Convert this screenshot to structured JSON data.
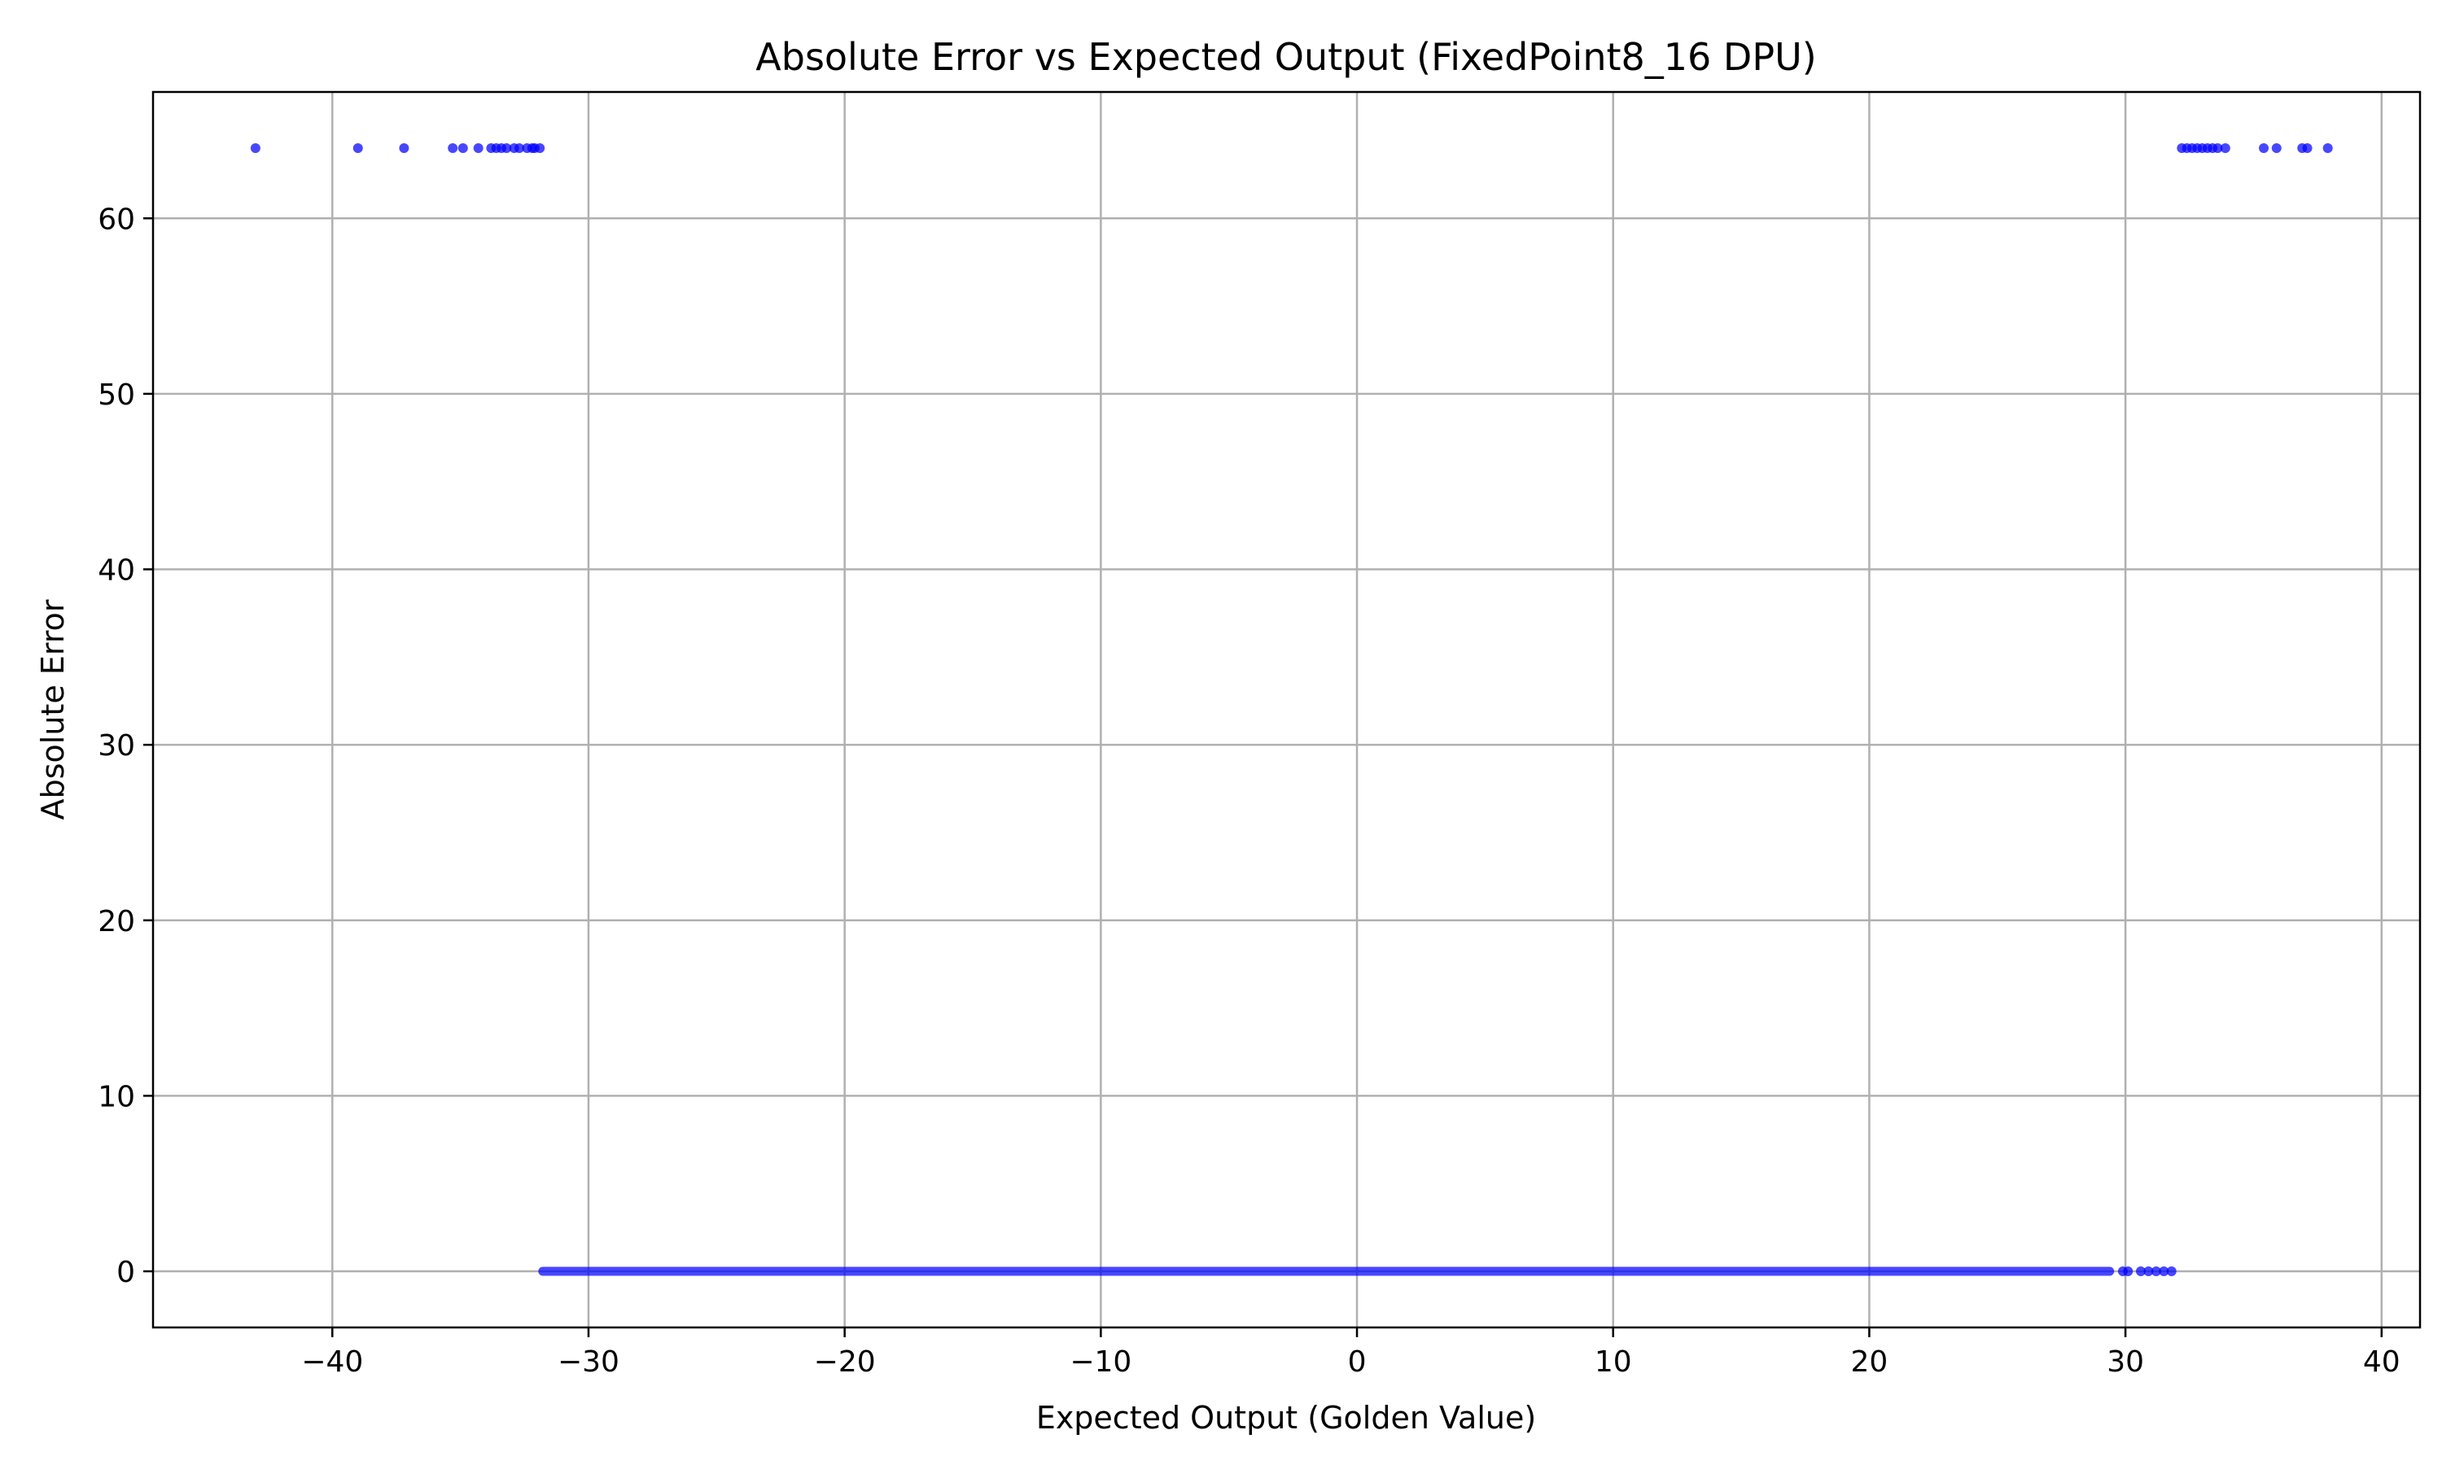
{
  "chart_data": {
    "type": "scatter",
    "title": "Absolute Error vs Expected Output (FixedPoint8_16 DPU)",
    "xlabel": "Expected Output (Golden Value)",
    "ylabel": "Absolute Error",
    "xlim": [
      -47,
      41.5
    ],
    "ylim": [
      -3.2,
      67.2
    ],
    "xticks": [
      -40,
      -30,
      -20,
      -10,
      0,
      10,
      20,
      30,
      40
    ],
    "xtick_labels": [
      "−40",
      "−30",
      "−20",
      "−10",
      "0",
      "10",
      "20",
      "30",
      "40"
    ],
    "yticks": [
      0,
      10,
      20,
      30,
      40,
      50,
      60
    ],
    "ytick_labels": [
      "0",
      "10",
      "20",
      "30",
      "40",
      "50",
      "60"
    ],
    "grid": true,
    "marker_color": "#0000ff",
    "series": [
      {
        "points": [
          {
            "x": -43.0,
            "y": 64
          },
          {
            "x": -39.0,
            "y": 64
          },
          {
            "x": -37.2,
            "y": 64
          },
          {
            "x": -35.3,
            "y": 64
          },
          {
            "x": -34.9,
            "y": 64
          },
          {
            "x": -34.3,
            "y": 64
          },
          {
            "x": -33.8,
            "y": 64
          },
          {
            "x": -33.6,
            "y": 64
          },
          {
            "x": -33.4,
            "y": 64
          },
          {
            "x": -33.2,
            "y": 64
          },
          {
            "x": -32.9,
            "y": 64
          },
          {
            "x": -32.7,
            "y": 64
          },
          {
            "x": -32.4,
            "y": 64
          },
          {
            "x": -32.2,
            "y": 64
          },
          {
            "x": -32.1,
            "y": 64
          },
          {
            "x": -31.9,
            "y": 64
          },
          {
            "x": 32.2,
            "y": 64
          },
          {
            "x": 32.4,
            "y": 64
          },
          {
            "x": 32.6,
            "y": 64
          },
          {
            "x": 32.8,
            "y": 64
          },
          {
            "x": 33.0,
            "y": 64
          },
          {
            "x": 33.2,
            "y": 64
          },
          {
            "x": 33.4,
            "y": 64
          },
          {
            "x": 33.6,
            "y": 64
          },
          {
            "x": 33.9,
            "y": 64
          },
          {
            "x": 35.4,
            "y": 64
          },
          {
            "x": 35.9,
            "y": 64
          },
          {
            "x": 36.9,
            "y": 64
          },
          {
            "x": 37.1,
            "y": 64
          },
          {
            "x": 37.9,
            "y": 64
          },
          {
            "x": 29.9,
            "y": 0
          },
          {
            "x": 30.1,
            "y": 0
          },
          {
            "x": 30.6,
            "y": 0
          },
          {
            "x": 30.9,
            "y": 0
          },
          {
            "x": 31.2,
            "y": 0
          },
          {
            "x": 31.5,
            "y": 0
          },
          {
            "x": 31.8,
            "y": 0
          }
        ],
        "dense_band": {
          "x_range": [
            -31.8,
            29.4
          ],
          "y": 0
        }
      }
    ]
  }
}
